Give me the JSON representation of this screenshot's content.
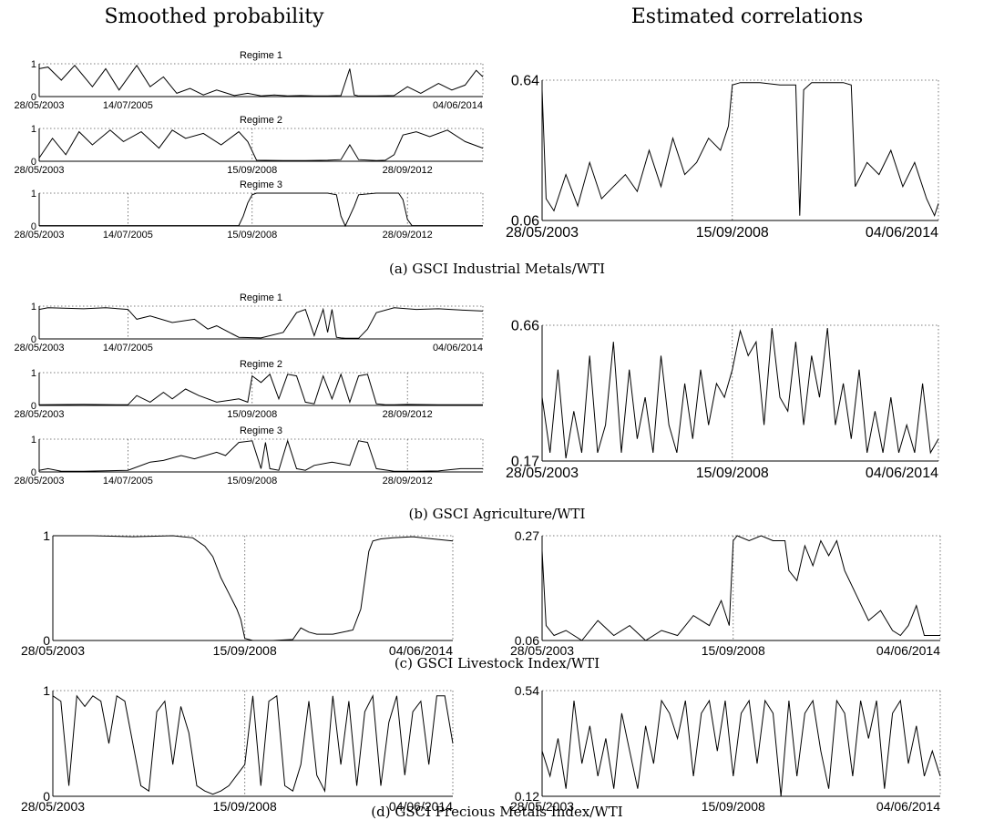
{
  "headers": {
    "left": "Smoothed probability",
    "right": "Estimated correlations"
  },
  "captions": {
    "a": "(a) GSCI Industrial Metals/WTI",
    "b": "(b) GSCI Agriculture/WTI",
    "c": "(c) GSCI Livestock Index/WTI",
    "d": "(d) GSCI Precious Metals Index/WTI"
  },
  "chart_data": [
    {
      "id": "a-r1",
      "panel": "a",
      "side": "left",
      "type": "line",
      "title": "Regime 1",
      "ylim": [
        0,
        1
      ],
      "yticks": [
        "0",
        "1"
      ],
      "xticks": [
        "28/05/2003",
        "14/07/2005",
        "04/06/2014"
      ],
      "vlines": [],
      "grid": "dotted top",
      "x": [
        0,
        0.02,
        0.05,
        0.08,
        0.12,
        0.15,
        0.18,
        0.22,
        0.25,
        0.28,
        0.31,
        0.34,
        0.37,
        0.4,
        0.44,
        0.47,
        0.5,
        0.53,
        0.56,
        0.59,
        0.62,
        0.65,
        0.68,
        0.7,
        0.71,
        0.72,
        0.76,
        0.8,
        0.83,
        0.86,
        0.9,
        0.93,
        0.96,
        0.985,
        1
      ],
      "y": [
        0.85,
        0.9,
        0.5,
        0.95,
        0.3,
        0.85,
        0.2,
        0.95,
        0.3,
        0.6,
        0.1,
        0.25,
        0.05,
        0.2,
        0.03,
        0.1,
        0.02,
        0.05,
        0.02,
        0.03,
        0.02,
        0.02,
        0.03,
        0.85,
        0.05,
        0.02,
        0.02,
        0.03,
        0.3,
        0.1,
        0.4,
        0.2,
        0.35,
        0.8,
        0.6
      ]
    },
    {
      "id": "a-r2",
      "panel": "a",
      "side": "left",
      "type": "line",
      "title": "Regime 2",
      "ylim": [
        0,
        1
      ],
      "yticks": [
        "0",
        "1"
      ],
      "xticks": [
        "28/05/2003",
        "15/09/2008",
        "28/09/2012"
      ],
      "vlines": [
        0.48
      ],
      "grid": "dotted top",
      "x": [
        0,
        0.03,
        0.06,
        0.09,
        0.12,
        0.16,
        0.19,
        0.23,
        0.27,
        0.3,
        0.33,
        0.37,
        0.41,
        0.45,
        0.47,
        0.49,
        0.55,
        0.6,
        0.65,
        0.68,
        0.7,
        0.72,
        0.76,
        0.78,
        0.8,
        0.82,
        0.85,
        0.88,
        0.92,
        0.96,
        1
      ],
      "y": [
        0.1,
        0.7,
        0.2,
        0.9,
        0.5,
        0.95,
        0.6,
        0.9,
        0.4,
        0.95,
        0.7,
        0.85,
        0.5,
        0.9,
        0.6,
        0.03,
        0.02,
        0.02,
        0.03,
        0.05,
        0.5,
        0.05,
        0.02,
        0.03,
        0.2,
        0.8,
        0.9,
        0.75,
        0.95,
        0.6,
        0.4
      ]
    },
    {
      "id": "a-r3",
      "panel": "a",
      "side": "left",
      "type": "line",
      "title": "Regime 3",
      "ylim": [
        0,
        1
      ],
      "yticks": [
        "0",
        "1"
      ],
      "xticks": [
        "28/05/2003",
        "14/07/2005",
        "15/09/2008",
        "28/09/2012"
      ],
      "vlines": [
        0.2,
        0.48,
        0.83
      ],
      "grid": "dotted top",
      "x": [
        0,
        0.45,
        0.46,
        0.47,
        0.48,
        0.49,
        0.5,
        0.6,
        0.65,
        0.67,
        0.68,
        0.69,
        0.71,
        0.72,
        0.76,
        0.78,
        0.8,
        0.81,
        0.82,
        0.83,
        0.84,
        1
      ],
      "y": [
        0.01,
        0.01,
        0.3,
        0.7,
        0.95,
        1,
        1,
        1,
        1,
        0.95,
        0.3,
        0,
        0.6,
        0.95,
        1,
        1,
        1,
        1,
        0.8,
        0.2,
        0.01,
        0.01
      ]
    },
    {
      "id": "a-corr",
      "panel": "a",
      "side": "right",
      "type": "line",
      "ylim": [
        0.06,
        0.64
      ],
      "yticks": [
        "0.06",
        "0.64"
      ],
      "xticks": [
        "28/05/2003",
        "15/09/2008",
        "04/06/2014"
      ],
      "vlines": [
        0.48
      ],
      "grid": "dotted top",
      "x": [
        0,
        0.01,
        0.03,
        0.06,
        0.09,
        0.12,
        0.15,
        0.18,
        0.21,
        0.24,
        0.27,
        0.3,
        0.33,
        0.36,
        0.39,
        0.42,
        0.45,
        0.47,
        0.48,
        0.5,
        0.55,
        0.6,
        0.64,
        0.65,
        0.66,
        0.68,
        0.72,
        0.76,
        0.78,
        0.79,
        0.82,
        0.85,
        0.88,
        0.91,
        0.94,
        0.97,
        0.99,
        1
      ],
      "y": [
        0.6,
        0.15,
        0.1,
        0.25,
        0.12,
        0.3,
        0.15,
        0.2,
        0.25,
        0.18,
        0.35,
        0.2,
        0.4,
        0.25,
        0.3,
        0.4,
        0.35,
        0.45,
        0.62,
        0.63,
        0.63,
        0.62,
        0.62,
        0.08,
        0.6,
        0.63,
        0.63,
        0.63,
        0.62,
        0.2,
        0.3,
        0.25,
        0.35,
        0.2,
        0.3,
        0.15,
        0.08,
        0.13
      ]
    },
    {
      "id": "b-r1",
      "panel": "b",
      "side": "left",
      "type": "line",
      "title": "Regime 1",
      "ylim": [
        0,
        1
      ],
      "yticks": [
        "0",
        "1"
      ],
      "xticks": [
        "28/05/2003",
        "14/07/2005",
        "04/06/2014"
      ],
      "vlines": [
        0.2
      ],
      "grid": "dotted top",
      "x": [
        0,
        0.02,
        0.1,
        0.15,
        0.2,
        0.22,
        0.25,
        0.3,
        0.35,
        0.38,
        0.4,
        0.45,
        0.5,
        0.55,
        0.58,
        0.6,
        0.62,
        0.64,
        0.65,
        0.66,
        0.67,
        0.68,
        0.69,
        0.72,
        0.74,
        0.76,
        0.8,
        0.85,
        0.9,
        0.95,
        1
      ],
      "y": [
        0.9,
        0.95,
        0.92,
        0.95,
        0.9,
        0.6,
        0.7,
        0.5,
        0.6,
        0.3,
        0.4,
        0.05,
        0.03,
        0.2,
        0.8,
        0.9,
        0.1,
        0.9,
        0.2,
        0.9,
        0.05,
        0.03,
        0.02,
        0.02,
        0.3,
        0.8,
        0.95,
        0.9,
        0.92,
        0.88,
        0.85
      ]
    },
    {
      "id": "b-r2",
      "panel": "b",
      "side": "left",
      "type": "line",
      "title": "Regime 2",
      "ylim": [
        0,
        1
      ],
      "yticks": [
        "0",
        "1"
      ],
      "xticks": [
        "28/05/2003",
        "15/09/2008",
        "28/09/2012"
      ],
      "vlines": [
        0.48,
        0.83
      ],
      "grid": "dotted top",
      "x": [
        0,
        0.1,
        0.2,
        0.22,
        0.25,
        0.28,
        0.3,
        0.33,
        0.36,
        0.4,
        0.45,
        0.47,
        0.48,
        0.5,
        0.52,
        0.54,
        0.56,
        0.58,
        0.6,
        0.62,
        0.64,
        0.66,
        0.68,
        0.7,
        0.72,
        0.74,
        0.76,
        0.78,
        0.8,
        0.83,
        0.9,
        1
      ],
      "y": [
        0.02,
        0.03,
        0.02,
        0.3,
        0.1,
        0.4,
        0.2,
        0.5,
        0.3,
        0.1,
        0.2,
        0.1,
        0.9,
        0.7,
        0.95,
        0.2,
        0.95,
        0.9,
        0.1,
        0.05,
        0.9,
        0.2,
        0.95,
        0.1,
        0.9,
        0.95,
        0.05,
        0.02,
        0.02,
        0.03,
        0.02,
        0.02
      ]
    },
    {
      "id": "b-r3",
      "panel": "b",
      "side": "left",
      "type": "line",
      "title": "Regime 3",
      "ylim": [
        0,
        1
      ],
      "yticks": [
        "0",
        "1"
      ],
      "xticks": [
        "28/05/2003",
        "14/07/2005",
        "15/09/2008",
        "28/09/2012"
      ],
      "vlines": [
        0.2,
        0.83
      ],
      "grid": "dotted top",
      "x": [
        0,
        0.02,
        0.05,
        0.1,
        0.2,
        0.25,
        0.28,
        0.32,
        0.35,
        0.4,
        0.42,
        0.45,
        0.48,
        0.5,
        0.51,
        0.52,
        0.54,
        0.56,
        0.58,
        0.6,
        0.62,
        0.66,
        0.7,
        0.72,
        0.74,
        0.76,
        0.8,
        0.85,
        0.9,
        0.95,
        1
      ],
      "y": [
        0.05,
        0.1,
        0.02,
        0.02,
        0.05,
        0.3,
        0.35,
        0.5,
        0.4,
        0.6,
        0.5,
        0.9,
        0.95,
        0.1,
        0.9,
        0.1,
        0.05,
        0.95,
        0.1,
        0.05,
        0.2,
        0.3,
        0.2,
        0.95,
        0.9,
        0.1,
        0.02,
        0.02,
        0.03,
        0.1,
        0.1
      ]
    },
    {
      "id": "b-corr",
      "panel": "b",
      "side": "right",
      "type": "line",
      "ylim": [
        0.17,
        0.66
      ],
      "yticks": [
        "0.17",
        "0.66"
      ],
      "xticks": [
        "28/05/2003",
        "15/09/2008",
        "04/06/2014"
      ],
      "vlines": [
        0.48
      ],
      "grid": "dotted top",
      "x": [
        0,
        0.02,
        0.04,
        0.06,
        0.08,
        0.1,
        0.12,
        0.14,
        0.16,
        0.18,
        0.2,
        0.22,
        0.24,
        0.26,
        0.28,
        0.3,
        0.32,
        0.34,
        0.36,
        0.38,
        0.4,
        0.42,
        0.44,
        0.46,
        0.48,
        0.5,
        0.52,
        0.54,
        0.56,
        0.58,
        0.6,
        0.62,
        0.64,
        0.66,
        0.68,
        0.7,
        0.72,
        0.74,
        0.76,
        0.78,
        0.8,
        0.82,
        0.84,
        0.86,
        0.88,
        0.9,
        0.92,
        0.94,
        0.96,
        0.98,
        1
      ],
      "y": [
        0.4,
        0.2,
        0.5,
        0.18,
        0.35,
        0.2,
        0.55,
        0.2,
        0.3,
        0.6,
        0.2,
        0.5,
        0.25,
        0.4,
        0.2,
        0.55,
        0.3,
        0.2,
        0.45,
        0.25,
        0.5,
        0.3,
        0.45,
        0.4,
        0.5,
        0.64,
        0.55,
        0.6,
        0.3,
        0.65,
        0.4,
        0.35,
        0.6,
        0.3,
        0.55,
        0.4,
        0.65,
        0.3,
        0.45,
        0.25,
        0.5,
        0.2,
        0.35,
        0.2,
        0.4,
        0.2,
        0.3,
        0.2,
        0.45,
        0.2,
        0.25
      ]
    },
    {
      "id": "c-prob",
      "panel": "c",
      "side": "left",
      "type": "line",
      "ylim": [
        0,
        1
      ],
      "yticks": [
        "0",
        "1"
      ],
      "xticks": [
        "28/05/2003",
        "15/09/2008",
        "04/06/2014"
      ],
      "vlines": [
        0.48
      ],
      "grid": "dotted top",
      "x": [
        0,
        0.1,
        0.2,
        0.3,
        0.35,
        0.38,
        0.4,
        0.42,
        0.44,
        0.46,
        0.47,
        0.48,
        0.5,
        0.55,
        0.6,
        0.62,
        0.64,
        0.66,
        0.7,
        0.75,
        0.77,
        0.79,
        0.8,
        0.82,
        0.85,
        0.9,
        0.95,
        1
      ],
      "y": [
        1,
        1,
        0.99,
        1,
        0.98,
        0.9,
        0.8,
        0.6,
        0.45,
        0.3,
        0.2,
        0.02,
        0,
        0,
        0.01,
        0.12,
        0.08,
        0.06,
        0.06,
        0.1,
        0.3,
        0.85,
        0.95,
        0.97,
        0.98,
        0.99,
        0.97,
        0.95
      ]
    },
    {
      "id": "c-corr",
      "panel": "c",
      "side": "right",
      "type": "line",
      "ylim": [
        0.06,
        0.27
      ],
      "yticks": [
        "0.06",
        "0.27"
      ],
      "xticks": [
        "28/05/2003",
        "15/09/2008",
        "04/06/2014"
      ],
      "vlines": [
        0.48
      ],
      "grid": "dotted top",
      "x": [
        0,
        0.01,
        0.03,
        0.06,
        0.1,
        0.14,
        0.18,
        0.22,
        0.26,
        0.3,
        0.34,
        0.38,
        0.42,
        0.45,
        0.47,
        0.48,
        0.49,
        0.52,
        0.55,
        0.58,
        0.61,
        0.62,
        0.64,
        0.66,
        0.68,
        0.7,
        0.72,
        0.74,
        0.76,
        0.79,
        0.82,
        0.85,
        0.88,
        0.9,
        0.92,
        0.94,
        0.96,
        1
      ],
      "y": [
        0.24,
        0.09,
        0.07,
        0.08,
        0.06,
        0.1,
        0.07,
        0.09,
        0.06,
        0.08,
        0.07,
        0.11,
        0.09,
        0.14,
        0.09,
        0.26,
        0.27,
        0.26,
        0.27,
        0.26,
        0.26,
        0.2,
        0.18,
        0.25,
        0.21,
        0.26,
        0.23,
        0.26,
        0.2,
        0.15,
        0.1,
        0.12,
        0.08,
        0.07,
        0.09,
        0.13,
        0.07,
        0.07
      ]
    },
    {
      "id": "d-prob",
      "panel": "d",
      "side": "left",
      "type": "line",
      "ylim": [
        0,
        1
      ],
      "yticks": [
        "0",
        "1"
      ],
      "xticks": [
        "28/05/2003",
        "15/09/2008",
        "04/06/2014"
      ],
      "vlines": [
        0.48
      ],
      "grid": "dotted top",
      "x": [
        0,
        0.02,
        0.04,
        0.06,
        0.08,
        0.1,
        0.12,
        0.14,
        0.16,
        0.18,
        0.2,
        0.22,
        0.24,
        0.26,
        0.28,
        0.3,
        0.32,
        0.34,
        0.36,
        0.38,
        0.4,
        0.42,
        0.44,
        0.46,
        0.48,
        0.5,
        0.52,
        0.54,
        0.56,
        0.58,
        0.6,
        0.62,
        0.64,
        0.66,
        0.68,
        0.7,
        0.72,
        0.74,
        0.76,
        0.78,
        0.8,
        0.82,
        0.84,
        0.86,
        0.88,
        0.9,
        0.92,
        0.94,
        0.96,
        0.98,
        1
      ],
      "y": [
        0.95,
        0.9,
        0.1,
        0.95,
        0.85,
        0.95,
        0.9,
        0.5,
        0.95,
        0.9,
        0.5,
        0.1,
        0.05,
        0.8,
        0.9,
        0.3,
        0.85,
        0.6,
        0.1,
        0.05,
        0.02,
        0.05,
        0.1,
        0.2,
        0.3,
        0.95,
        0.1,
        0.9,
        0.95,
        0.1,
        0.05,
        0.3,
        0.9,
        0.2,
        0.05,
        0.95,
        0.3,
        0.9,
        0.1,
        0.8,
        0.95,
        0.1,
        0.7,
        0.95,
        0.2,
        0.8,
        0.9,
        0.3,
        0.95,
        0.95,
        0.5
      ]
    },
    {
      "id": "d-corr",
      "panel": "d",
      "side": "right",
      "type": "line",
      "ylim": [
        0.12,
        0.54
      ],
      "yticks": [
        "0.12",
        "0.54"
      ],
      "xticks": [
        "28/05/2003",
        "15/09/2008",
        "04/06/2014"
      ],
      "vlines": [],
      "grid": "dotted top",
      "x": [
        0,
        0.02,
        0.04,
        0.06,
        0.08,
        0.1,
        0.12,
        0.14,
        0.16,
        0.18,
        0.2,
        0.22,
        0.24,
        0.26,
        0.28,
        0.3,
        0.32,
        0.34,
        0.36,
        0.38,
        0.4,
        0.42,
        0.44,
        0.46,
        0.48,
        0.5,
        0.52,
        0.54,
        0.56,
        0.58,
        0.6,
        0.62,
        0.64,
        0.66,
        0.68,
        0.7,
        0.72,
        0.74,
        0.76,
        0.78,
        0.8,
        0.82,
        0.84,
        0.86,
        0.88,
        0.9,
        0.92,
        0.94,
        0.96,
        0.98,
        1
      ],
      "y": [
        0.3,
        0.2,
        0.35,
        0.15,
        0.5,
        0.25,
        0.4,
        0.2,
        0.35,
        0.15,
        0.45,
        0.3,
        0.15,
        0.4,
        0.25,
        0.5,
        0.45,
        0.35,
        0.5,
        0.2,
        0.45,
        0.5,
        0.3,
        0.5,
        0.2,
        0.45,
        0.5,
        0.25,
        0.5,
        0.45,
        0.12,
        0.5,
        0.2,
        0.45,
        0.5,
        0.3,
        0.15,
        0.5,
        0.45,
        0.2,
        0.5,
        0.35,
        0.5,
        0.15,
        0.45,
        0.5,
        0.25,
        0.4,
        0.2,
        0.3,
        0.2
      ]
    }
  ]
}
